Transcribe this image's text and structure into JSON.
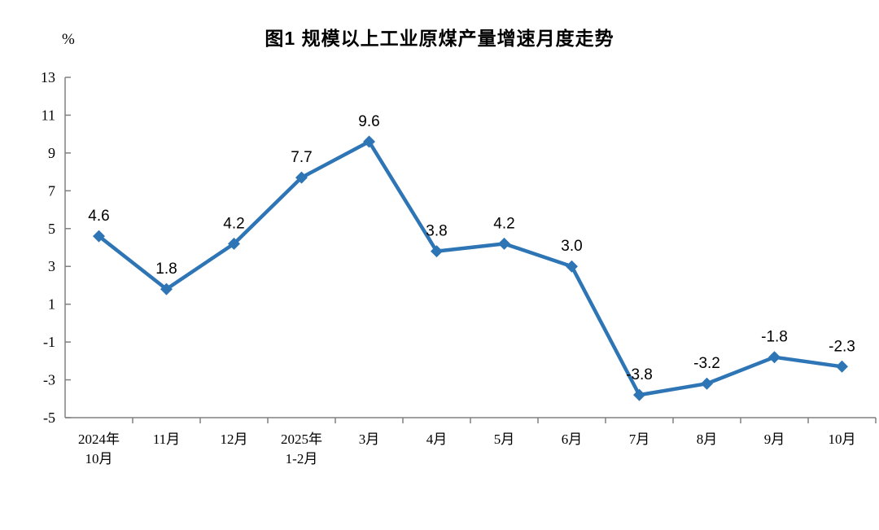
{
  "chart_data": {
    "type": "line",
    "title": "图1  规模以上工业原煤产量增速月度走势",
    "unit_label": "%",
    "categories": [
      [
        "2024年",
        "10月"
      ],
      [
        "11月"
      ],
      [
        "12月"
      ],
      [
        "2025年",
        "1-2月"
      ],
      [
        "3月"
      ],
      [
        "4月"
      ],
      [
        "5月"
      ],
      [
        "6月"
      ],
      [
        "7月"
      ],
      [
        "8月"
      ],
      [
        "9月"
      ],
      [
        "10月"
      ]
    ],
    "values": [
      4.6,
      1.8,
      4.2,
      7.7,
      9.6,
      3.8,
      4.2,
      3.0,
      -3.8,
      -3.2,
      -1.8,
      -2.3
    ],
    "point_labels": [
      "4.6",
      "1.8",
      "4.2",
      "7.7",
      "9.6",
      "3.8",
      "4.2",
      "3.0",
      "-3.8",
      "-3.2",
      "-1.8",
      "-2.3"
    ],
    "xlabel": "",
    "ylabel": "%",
    "ylim": [
      -5,
      13
    ],
    "ytick_step": 2,
    "grid": false,
    "legend_position": "none",
    "marker": "diamond",
    "colors": {
      "line": "#2E75B6",
      "marker": "#2E75B6",
      "axis": "#808080",
      "text": "#000000",
      "background": "#FFFFFF"
    }
  }
}
